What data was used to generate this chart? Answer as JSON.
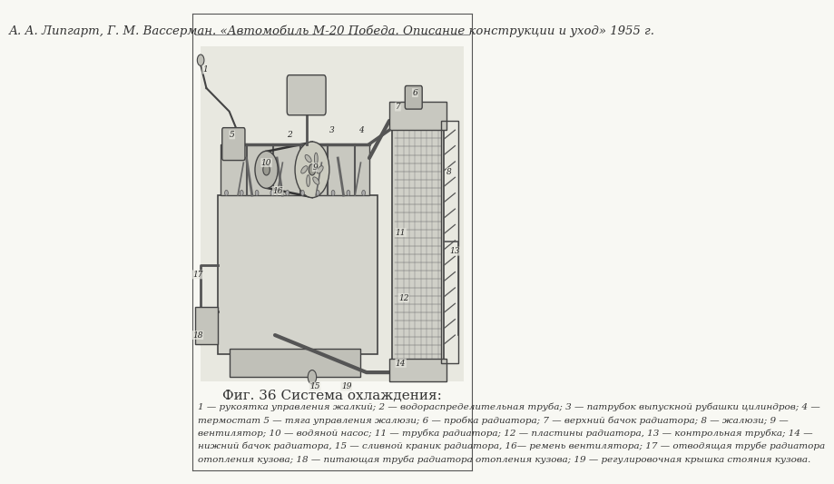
{
  "background_color": "#f5f5f0",
  "border_color": "#555555",
  "header_text": "А. А. Липгарт, Г. М. Вассерман. «Автомобиль М-20 Победа. Описание конструкции и уход» 1955 г.",
  "header_fontsize": 9.5,
  "header_color": "#333333",
  "figure_title": "Фиг. 36 Система охлаждения:",
  "figure_title_fontsize": 11,
  "figure_title_color": "#333333",
  "caption_line1": "1 — рукоятка управления жалкий; 2 — водораспределительная труба; 3 — патрубок выпускной рубашки цилиндров; 4 —",
  "caption_line2": "термостат 5 — тяга управления жалюзи; 6 — пробка радиатора; 7 — верхний бачок радиатора; 8 — жалюзи; 9 —",
  "caption_line3": "вентилятор; 10 — водяной насос; 11 — трубка радиатора; 12 — пластины радиатора, 13 — контрольная трубка; 14 —",
  "caption_line4": "нижний бачок радиатора, 15 — сливной краник радиатора, 16— ремень вентилятора; 17 — отводящая трубе радиатора",
  "caption_line5": "отопления кузова; 18 — питающая труба радиатора отопления кузова; 19 — регулировочная крышка стояния кузова.",
  "caption_fontsize": 7.5,
  "caption_color": "#333333",
  "page_bg": "#f8f8f3",
  "header_line_color": "#888888",
  "image_bg": "#e8e8e0"
}
